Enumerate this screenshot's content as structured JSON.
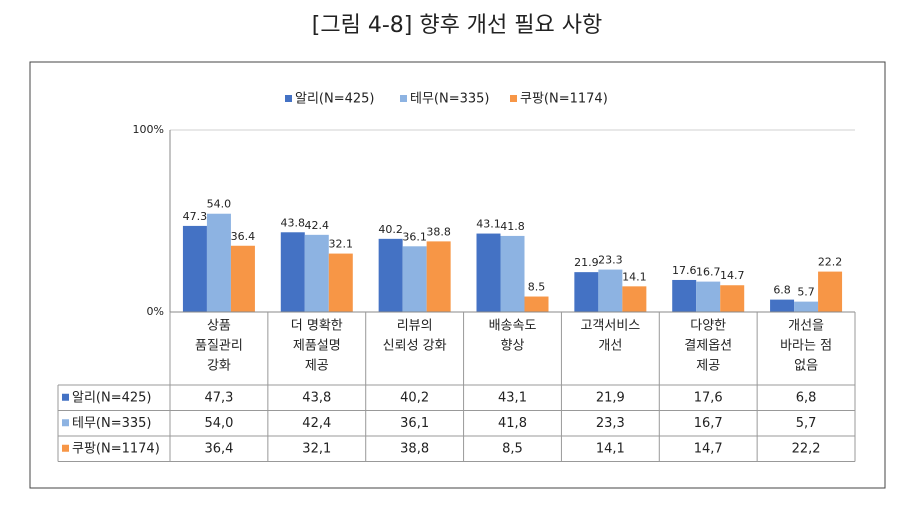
{
  "chart_data": {
    "type": "bar",
    "title": "[그림 4-8]  향후 개선 필요 사항",
    "categories": [
      [
        "상품",
        "품질관리",
        "강화"
      ],
      [
        "더 명확한",
        "제품설명",
        "제공"
      ],
      [
        "리뷰의",
        "신뢰성 강화"
      ],
      [
        "배송속도",
        "향상"
      ],
      [
        "고객서비스",
        "개선"
      ],
      [
        "다양한",
        "결제옵션",
        "제공"
      ],
      [
        "개선을",
        "바라는 점",
        "없음"
      ]
    ],
    "series": [
      {
        "name": "알리(N=425)",
        "color": "#4472c4",
        "values": [
          47.3,
          43.8,
          40.2,
          43.1,
          21.9,
          17.6,
          6.8
        ],
        "value_labels": [
          "47.3",
          "43.8",
          "40.2",
          "43.1",
          "21.9",
          "17.6",
          "6.8"
        ],
        "table_labels": [
          "47,3",
          "43,8",
          "40,2",
          "43,1",
          "21,9",
          "17,6",
          "6,8"
        ]
      },
      {
        "name": "테무(N=335)",
        "color": "#8db3e2",
        "values": [
          54.0,
          42.4,
          36.1,
          41.8,
          23.3,
          16.7,
          5.7
        ],
        "value_labels": [
          "54.0",
          "42.4",
          "36.1",
          "41.8",
          "23.3",
          "16.7",
          "5.7"
        ],
        "table_labels": [
          "54,0",
          "42,4",
          "36,1",
          "41,8",
          "23,3",
          "16,7",
          "5,7"
        ]
      },
      {
        "name": "쿠팡(N=1174)",
        "color": "#f79646",
        "values": [
          36.4,
          32.1,
          38.8,
          8.5,
          14.1,
          14.7,
          22.2
        ],
        "value_labels": [
          "36.4",
          "32.1",
          "38.8",
          "8.5",
          "14.1",
          "14.7",
          "22.2"
        ],
        "table_labels": [
          "36,4",
          "32,1",
          "38,8",
          "8,5",
          "14,1",
          "14,7",
          "22,2"
        ]
      }
    ],
    "ylim": [
      0,
      100
    ],
    "yticks": [
      {
        "value": 0,
        "label": "0%"
      },
      {
        "value": 100,
        "label": "100%"
      }
    ],
    "grid": true
  }
}
